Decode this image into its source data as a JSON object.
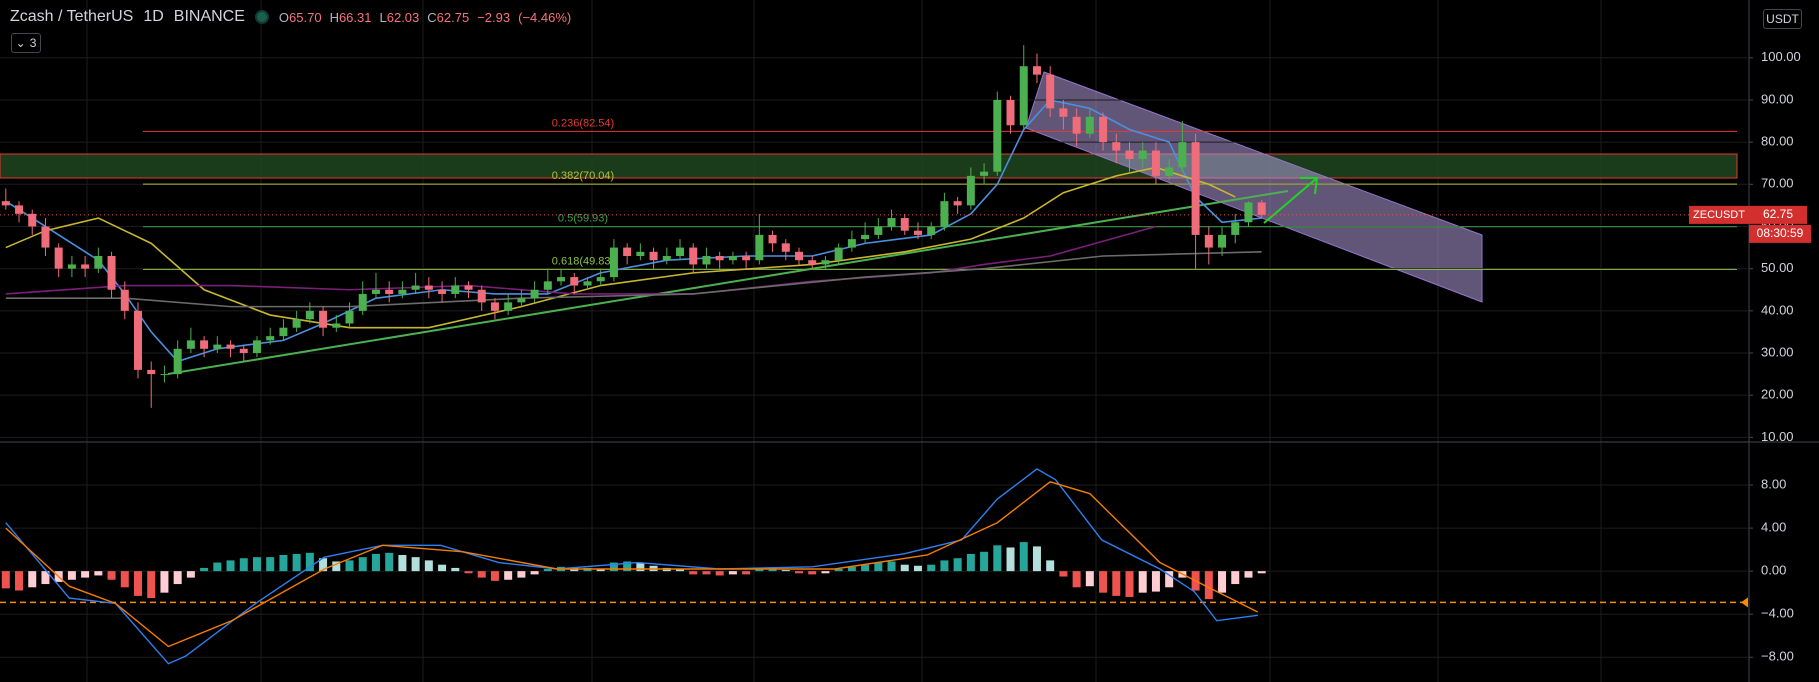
{
  "chart_data": {
    "type": "candlestick",
    "header": {
      "symbol": "Zcash / TetherUS",
      "interval": "1D",
      "exchange": "BINANCE",
      "ohlc": [
        {
          "label": "O",
          "value": "65.70"
        },
        {
          "label": "H",
          "value": "66.31"
        },
        {
          "label": "L",
          "value": "62.03"
        },
        {
          "label": "C",
          "value": "62.75"
        }
      ],
      "change": "−2.93",
      "change_pct": "(−4.46%)"
    },
    "indicators_button": "3",
    "currency": "USDT",
    "ticker": "ZECUSDT",
    "countdown": "08:30:59",
    "up_color": "#4caf50",
    "down_color": "#ef6c7a",
    "ylim": [
      8.9,
      113.7
    ],
    "yticks": [
      {
        "value": 10,
        "label": "10.00"
      },
      {
        "value": 20,
        "label": "20.00"
      },
      {
        "value": 30,
        "label": "30.00"
      },
      {
        "value": 40,
        "label": "40.00"
      },
      {
        "value": 50,
        "label": "50.00"
      },
      {
        "value": 60,
        "label": "60.00"
      },
      {
        "value": 70,
        "label": "70.00"
      },
      {
        "value": 80,
        "label": "80.00"
      },
      {
        "value": 90,
        "label": "90.00"
      },
      {
        "value": 100,
        "label": "100.00"
      }
    ],
    "candles": [
      [
        66,
        69,
        64,
        65
      ],
      [
        65,
        66,
        61,
        63
      ],
      [
        63,
        64,
        58,
        60
      ],
      [
        60,
        62,
        53,
        55
      ],
      [
        55,
        56,
        48,
        50
      ],
      [
        50,
        53,
        48,
        51
      ],
      [
        51,
        53,
        48,
        50
      ],
      [
        50,
        55,
        49,
        53
      ],
      [
        53,
        54,
        43,
        45
      ],
      [
        45,
        47,
        38,
        40
      ],
      [
        40,
        42,
        24,
        26
      ],
      [
        26,
        28,
        17,
        25
      ],
      [
        25,
        27,
        23,
        25
      ],
      [
        25,
        33,
        24,
        31
      ],
      [
        31,
        36,
        30,
        33
      ],
      [
        33,
        34,
        29,
        31
      ],
      [
        31,
        34,
        30,
        32
      ],
      [
        32,
        33,
        29,
        31
      ],
      [
        31,
        32,
        28,
        30
      ],
      [
        30,
        34,
        29,
        33
      ],
      [
        33,
        36,
        32,
        34
      ],
      [
        34,
        38,
        33,
        36
      ],
      [
        36,
        40,
        35,
        38
      ],
      [
        38,
        42,
        37,
        40
      ],
      [
        40,
        41,
        34,
        36
      ],
      [
        36,
        39,
        35,
        37
      ],
      [
        37,
        42,
        36,
        40
      ],
      [
        40,
        47,
        39,
        44
      ],
      [
        44,
        49,
        43,
        45
      ],
      [
        45,
        47,
        42,
        44
      ],
      [
        44,
        47,
        43,
        45
      ],
      [
        45,
        49,
        44,
        46
      ],
      [
        46,
        48,
        43,
        45
      ],
      [
        45,
        47,
        42,
        44
      ],
      [
        44,
        48,
        43,
        46
      ],
      [
        46,
        47,
        43,
        45
      ],
      [
        45,
        46,
        40,
        42
      ],
      [
        42,
        43,
        38,
        40
      ],
      [
        40,
        44,
        39,
        42
      ],
      [
        42,
        45,
        41,
        43
      ],
      [
        43,
        47,
        42,
        45
      ],
      [
        45,
        50,
        44,
        47
      ],
      [
        47,
        50,
        46,
        48
      ],
      [
        48,
        49,
        44,
        46
      ],
      [
        46,
        48,
        45,
        47
      ],
      [
        47,
        50,
        46,
        48
      ],
      [
        48,
        57,
        47,
        55
      ],
      [
        55,
        56,
        51,
        53
      ],
      [
        53,
        56,
        52,
        54
      ],
      [
        54,
        55,
        50,
        52
      ],
      [
        52,
        55,
        51,
        53
      ],
      [
        53,
        57,
        52,
        55
      ],
      [
        55,
        56,
        49,
        51
      ],
      [
        51,
        55,
        50,
        53
      ],
      [
        53,
        54,
        50,
        52
      ],
      [
        52,
        54,
        51,
        53
      ],
      [
        53,
        54,
        50,
        52
      ],
      [
        52,
        63,
        51,
        58
      ],
      [
        58,
        59,
        54,
        56
      ],
      [
        56,
        57,
        52,
        54
      ],
      [
        54,
        55,
        51,
        52
      ],
      [
        52,
        53,
        50,
        51
      ],
      [
        51,
        53,
        50,
        52
      ],
      [
        52,
        56,
        51,
        55
      ],
      [
        55,
        59,
        54,
        57
      ],
      [
        57,
        61,
        56,
        58
      ],
      [
        58,
        62,
        57,
        60
      ],
      [
        60,
        64,
        59,
        62
      ],
      [
        62,
        63,
        58,
        59
      ],
      [
        59,
        61,
        57,
        58
      ],
      [
        58,
        61,
        57,
        60
      ],
      [
        60,
        68,
        59,
        66
      ],
      [
        66,
        67,
        63,
        65
      ],
      [
        65,
        74,
        64,
        72
      ],
      [
        72,
        75,
        70,
        73
      ],
      [
        73,
        92,
        72,
        90
      ],
      [
        90,
        91,
        82,
        84
      ],
      [
        84,
        103,
        83,
        98
      ],
      [
        98,
        101,
        94,
        96
      ],
      [
        96,
        98,
        86,
        88
      ],
      [
        88,
        90,
        83,
        86
      ],
      [
        86,
        88,
        79,
        82
      ],
      [
        82,
        88,
        81,
        86
      ],
      [
        86,
        87,
        78,
        80
      ],
      [
        80,
        82,
        75,
        78
      ],
      [
        78,
        80,
        73,
        76
      ],
      [
        76,
        80,
        74,
        78
      ],
      [
        78,
        80,
        70,
        72
      ],
      [
        72,
        76,
        71,
        74
      ],
      [
        74,
        85,
        73,
        80
      ],
      [
        80,
        82,
        50,
        58
      ],
      [
        58,
        60,
        51,
        55
      ],
      [
        55,
        60,
        53,
        58
      ],
      [
        58,
        63,
        56,
        61
      ],
      [
        61,
        66,
        60,
        65.7
      ],
      [
        65.7,
        66.31,
        62.03,
        62.75
      ]
    ],
    "moving_averages": [
      {
        "color": "#4a90e2",
        "x": [
          0,
          3,
          7,
          9,
          11,
          13,
          16,
          21,
          24,
          28,
          33,
          37,
          41,
          45,
          50,
          56,
          61,
          65,
          70,
          73,
          75,
          77,
          79,
          82,
          85,
          88,
          90,
          92,
          95
        ],
        "values": [
          66,
          60,
          52,
          44,
          35,
          28,
          31,
          33,
          37,
          43,
          45,
          44,
          44,
          49,
          52,
          53,
          53,
          56,
          58,
          63,
          70,
          83,
          90,
          88,
          83,
          80,
          67,
          61,
          62
        ]
      },
      {
        "color": "#c8b630",
        "x": [
          0,
          3,
          7,
          11,
          15,
          20,
          26,
          32,
          39,
          45,
          52,
          61,
          68,
          73,
          77,
          80,
          84,
          87,
          91,
          93
        ],
        "values": [
          55,
          59,
          62,
          56,
          45,
          39,
          36,
          36,
          41,
          46,
          49,
          51,
          54,
          57,
          62,
          68,
          72,
          74,
          70,
          67
        ]
      },
      {
        "color": "#7b1f7b",
        "x": [
          0,
          9,
          17,
          26,
          35,
          43,
          52,
          61,
          70,
          74,
          79,
          87
        ],
        "values": [
          44,
          46,
          46,
          45,
          46,
          44,
          44,
          47,
          49,
          51,
          53,
          60
        ]
      },
      {
        "color": "#6b6b6b",
        "x": [
          0,
          9,
          17,
          26,
          39,
          52,
          65,
          74,
          83,
          95
        ],
        "values": [
          43,
          43,
          41,
          41,
          43,
          44,
          48,
          50,
          53,
          54
        ]
      }
    ],
    "fib_levels": [
      {
        "value": 82.54,
        "label": "0.236(82.54)",
        "color": "#e53935"
      },
      {
        "value": 70.04,
        "label": "0.382(70.04)",
        "color": "#b7c13b"
      },
      {
        "value": 59.93,
        "label": "0.5(59.93)",
        "color": "#43a047"
      },
      {
        "value": 49.83,
        "label": "0.618(49.83)",
        "color": "#8bc34a"
      }
    ],
    "macd": {
      "ylim": [
        -10.3,
        12
      ],
      "yticks": [
        {
          "value": -8,
          "label": "−8.00"
        },
        {
          "value": -4,
          "label": "−4.00"
        },
        {
          "value": 0,
          "label": "0.00"
        },
        {
          "value": 4,
          "label": "4.00"
        },
        {
          "value": 8,
          "label": "8.00"
        }
      ],
      "hline": -2.9,
      "histogram": [
        -1.6,
        -1.8,
        -1.5,
        -1.2,
        -1.0,
        -0.8,
        -0.6,
        -0.4,
        -0.8,
        -1.5,
        -2.3,
        -2.5,
        -2.0,
        -1.2,
        -0.6,
        0.3,
        0.8,
        1.0,
        1.2,
        1.3,
        1.3,
        1.5,
        1.6,
        1.7,
        1.2,
        0.9,
        1.0,
        1.3,
        1.6,
        1.7,
        1.5,
        1.3,
        1.0,
        0.6,
        0.3,
        -0.2,
        -0.6,
        -0.9,
        -0.8,
        -0.6,
        -0.3,
        0.2,
        0.4,
        0.3,
        0.3,
        0.2,
        0.8,
        0.9,
        0.8,
        0.5,
        0.3,
        0.2,
        -0.3,
        -0.3,
        -0.4,
        -0.3,
        -0.3,
        0.3,
        0.3,
        0.1,
        -0.2,
        -0.3,
        -0.2,
        0.2,
        0.4,
        0.6,
        0.8,
        0.9,
        0.6,
        0.5,
        0.6,
        1.0,
        1.2,
        1.6,
        1.8,
        2.4,
        2.2,
        2.7,
        2.3,
        1.0,
        -0.5,
        -1.5,
        -1.4,
        -2.0,
        -2.3,
        -2.4,
        -2.0,
        -1.9,
        -1.5,
        -0.6,
        -1.8,
        -2.6,
        -2.0,
        -1.2,
        -0.6,
        -0.2
      ],
      "macd_line": {
        "color": "#2f7ff0",
        "x": [
          0,
          4.8,
          8.3,
          12.3,
          13.6,
          18.9,
          24.1,
          28.5,
          32.9,
          37.3,
          41.7,
          47.8,
          54,
          61,
          67.9,
          72.3,
          75,
          78,
          79.4,
          82.9,
          87.3,
          89.9,
          91.6,
          94.7
        ],
        "values": [
          4.5,
          -2.5,
          -3,
          -8.6,
          -7.9,
          -3,
          1.3,
          2.4,
          2.4,
          0.8,
          0.2,
          0.8,
          0.2,
          0.4,
          1.6,
          2.9,
          6.7,
          9.5,
          8.5,
          2.9,
          0.2,
          -1.9,
          -4.6,
          -4.1
        ]
      },
      "signal_line": {
        "color": "#f57c00",
        "x": [
          0,
          4.8,
          8.3,
          12.3,
          17.1,
          24.1,
          28.5,
          34.6,
          41.7,
          52.2,
          62.7,
          69.7,
          75,
          79,
          82,
          87.3,
          90.8,
          94.7
        ],
        "values": [
          4,
          -1.4,
          -3,
          -7,
          -4.6,
          0.2,
          2.4,
          1.8,
          0.2,
          0.2,
          0.2,
          1.5,
          4.5,
          8.3,
          7.2,
          0.8,
          -1.4,
          -3.8
        ]
      }
    }
  }
}
